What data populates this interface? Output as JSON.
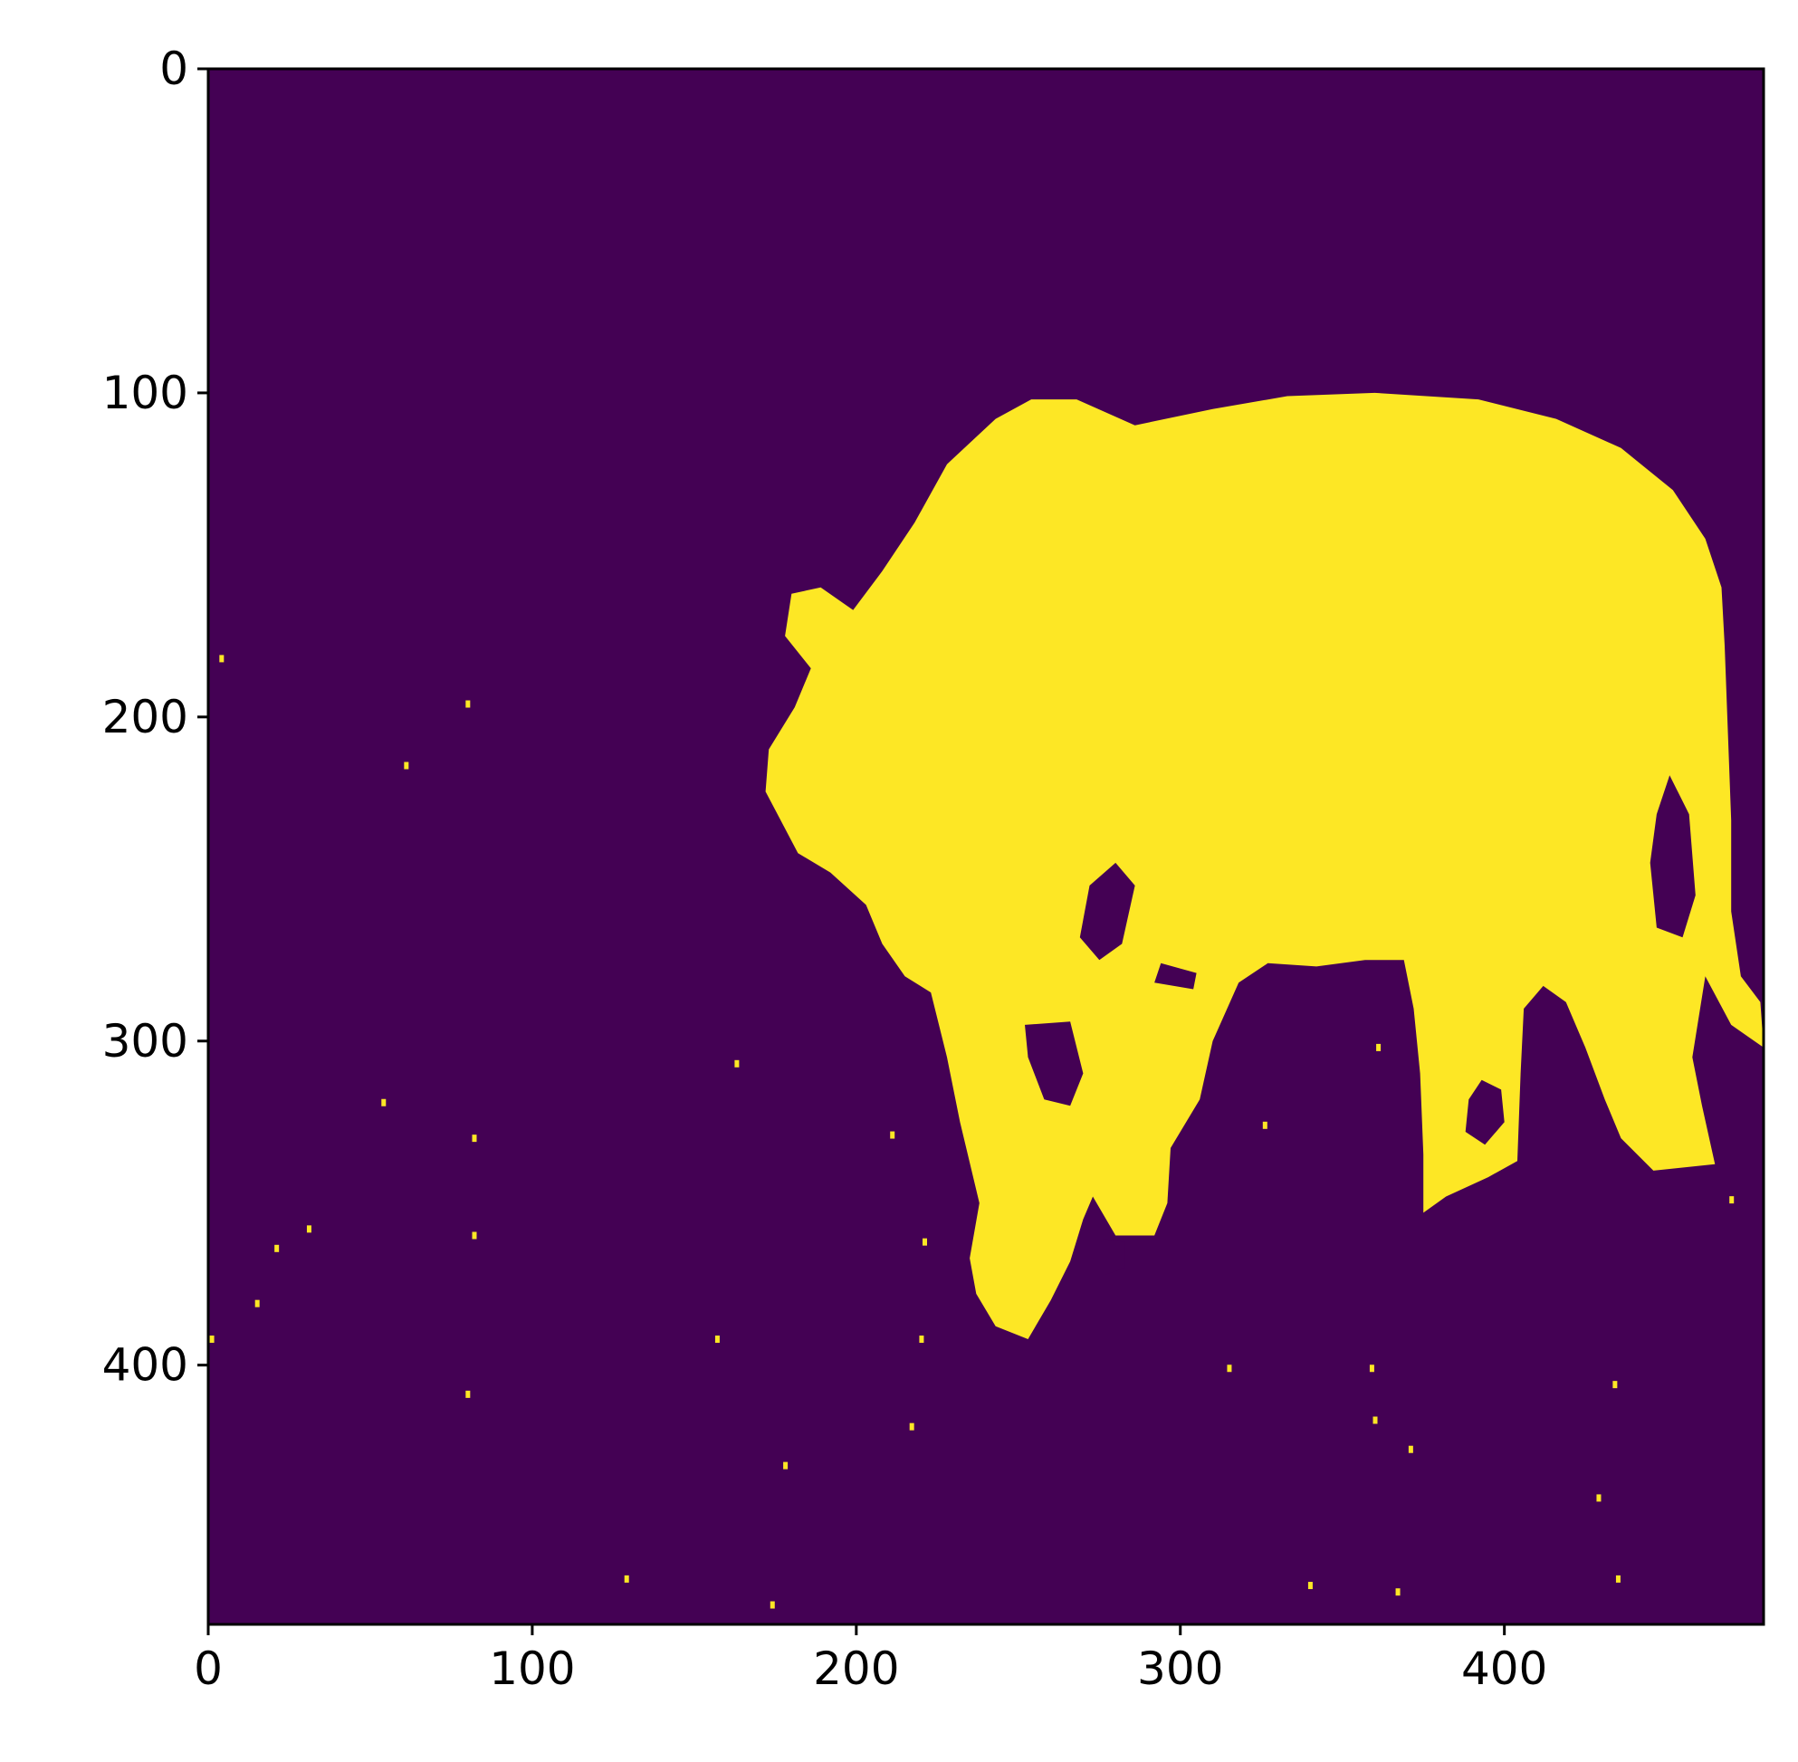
{
  "chart_data": {
    "type": "heatmap",
    "title": "",
    "xlabel": "",
    "ylabel": "",
    "xlim": [
      0,
      480
    ],
    "ylim": [
      480,
      0
    ],
    "x_ticks": [
      0,
      100,
      200,
      300,
      400
    ],
    "y_ticks": [
      0,
      100,
      200,
      300,
      400
    ],
    "x_tick_labels": [
      "0",
      "100",
      "200",
      "300",
      "400"
    ],
    "y_tick_labels": [
      "0",
      "100",
      "200",
      "300",
      "400"
    ],
    "grid": false,
    "colormap": "viridis",
    "colors": {
      "background_value": "#440154",
      "foreground_value": "#fde725",
      "axis": "#000000"
    },
    "mask": {
      "description_value": "binary segmentation mask of an elephant",
      "body_outline": [
        [
          360,
          100
        ],
        [
          392,
          102
        ],
        [
          416,
          108
        ],
        [
          436,
          117
        ],
        [
          452,
          130
        ],
        [
          462,
          145
        ],
        [
          467,
          160
        ],
        [
          468,
          178
        ],
        [
          469,
          205
        ],
        [
          470,
          232
        ],
        [
          470,
          260
        ],
        [
          473,
          280
        ],
        [
          479,
          288
        ],
        [
          480,
          302
        ],
        [
          470,
          295
        ],
        [
          462,
          280
        ],
        [
          458,
          305
        ],
        [
          461,
          320
        ],
        [
          465,
          338
        ],
        [
          446,
          340
        ],
        [
          436,
          330
        ],
        [
          431,
          318
        ],
        [
          425,
          302
        ],
        [
          419,
          288
        ],
        [
          412,
          283
        ],
        [
          406,
          290
        ],
        [
          405,
          310
        ],
        [
          404,
          337
        ],
        [
          395,
          342
        ],
        [
          382,
          348
        ],
        [
          375,
          353
        ],
        [
          375,
          335
        ],
        [
          374,
          310
        ],
        [
          372,
          290
        ],
        [
          369,
          275
        ],
        [
          357,
          275
        ],
        [
          342,
          277
        ],
        [
          327,
          276
        ],
        [
          318,
          282
        ],
        [
          310,
          300
        ],
        [
          306,
          318
        ],
        [
          297,
          333
        ],
        [
          296,
          350
        ],
        [
          292,
          360
        ],
        [
          280,
          360
        ],
        [
          273,
          348
        ],
        [
          270,
          355
        ],
        [
          266,
          368
        ],
        [
          260,
          380
        ],
        [
          253,
          392
        ],
        [
          243,
          388
        ],
        [
          237,
          378
        ],
        [
          235,
          367
        ],
        [
          238,
          350
        ],
        [
          232,
          325
        ],
        [
          228,
          305
        ],
        [
          223,
          285
        ],
        [
          215,
          280
        ],
        [
          208,
          270
        ],
        [
          203,
          258
        ],
        [
          192,
          248
        ],
        [
          182,
          242
        ],
        [
          172,
          223
        ],
        [
          173,
          210
        ],
        [
          181,
          197
        ],
        [
          186,
          185
        ],
        [
          178,
          175
        ],
        [
          180,
          162
        ],
        [
          189,
          160
        ],
        [
          199,
          167
        ],
        [
          208,
          155
        ],
        [
          218,
          140
        ],
        [
          228,
          122
        ],
        [
          243,
          108
        ],
        [
          254,
          102
        ],
        [
          268,
          102
        ],
        [
          286,
          110
        ],
        [
          310,
          105
        ],
        [
          333,
          101
        ]
      ],
      "holes": [
        [
          [
            280,
            245
          ],
          [
            286,
            252
          ],
          [
            282,
            270
          ],
          [
            275,
            275
          ],
          [
            269,
            268
          ],
          [
            272,
            252
          ]
        ],
        [
          [
            451,
            218
          ],
          [
            457,
            230
          ],
          [
            459,
            255
          ],
          [
            455,
            268
          ],
          [
            447,
            265
          ],
          [
            445,
            245
          ],
          [
            447,
            230
          ]
        ],
        [
          [
            252,
            295
          ],
          [
            266,
            294
          ],
          [
            270,
            310
          ],
          [
            266,
            320
          ],
          [
            258,
            318
          ],
          [
            253,
            305
          ]
        ],
        [
          [
            393,
            312
          ],
          [
            399,
            315
          ],
          [
            400,
            325
          ],
          [
            394,
            332
          ],
          [
            388,
            328
          ],
          [
            389,
            318
          ]
        ],
        [
          [
            276,
            361
          ],
          [
            283,
            362
          ],
          [
            283,
            370
          ],
          [
            277,
            372
          ],
          [
            273,
            367
          ]
        ],
        [
          [
            294,
            276
          ],
          [
            305,
            279
          ],
          [
            304,
            284
          ],
          [
            292,
            282
          ]
        ]
      ],
      "specks": [
        [
          4,
          182
        ],
        [
          80,
          196
        ],
        [
          61,
          215
        ],
        [
          54,
          319
        ],
        [
          82,
          330
        ],
        [
          21,
          364
        ],
        [
          15,
          381
        ],
        [
          31,
          358
        ],
        [
          82,
          360
        ],
        [
          1,
          392
        ],
        [
          163,
          307
        ],
        [
          178,
          431
        ],
        [
          157,
          392
        ],
        [
          129,
          466
        ],
        [
          174,
          474
        ],
        [
          80,
          409
        ],
        [
          211,
          329
        ],
        [
          221,
          362
        ],
        [
          220,
          392
        ],
        [
          217,
          419
        ],
        [
          315,
          401
        ],
        [
          359,
          401
        ],
        [
          360,
          417
        ],
        [
          340,
          468
        ],
        [
          434,
          406
        ],
        [
          429,
          441
        ],
        [
          435,
          466
        ],
        [
          470,
          349
        ],
        [
          361,
          302
        ],
        [
          371,
          426
        ],
        [
          326,
          326
        ],
        [
          367,
          470
        ]
      ]
    }
  }
}
